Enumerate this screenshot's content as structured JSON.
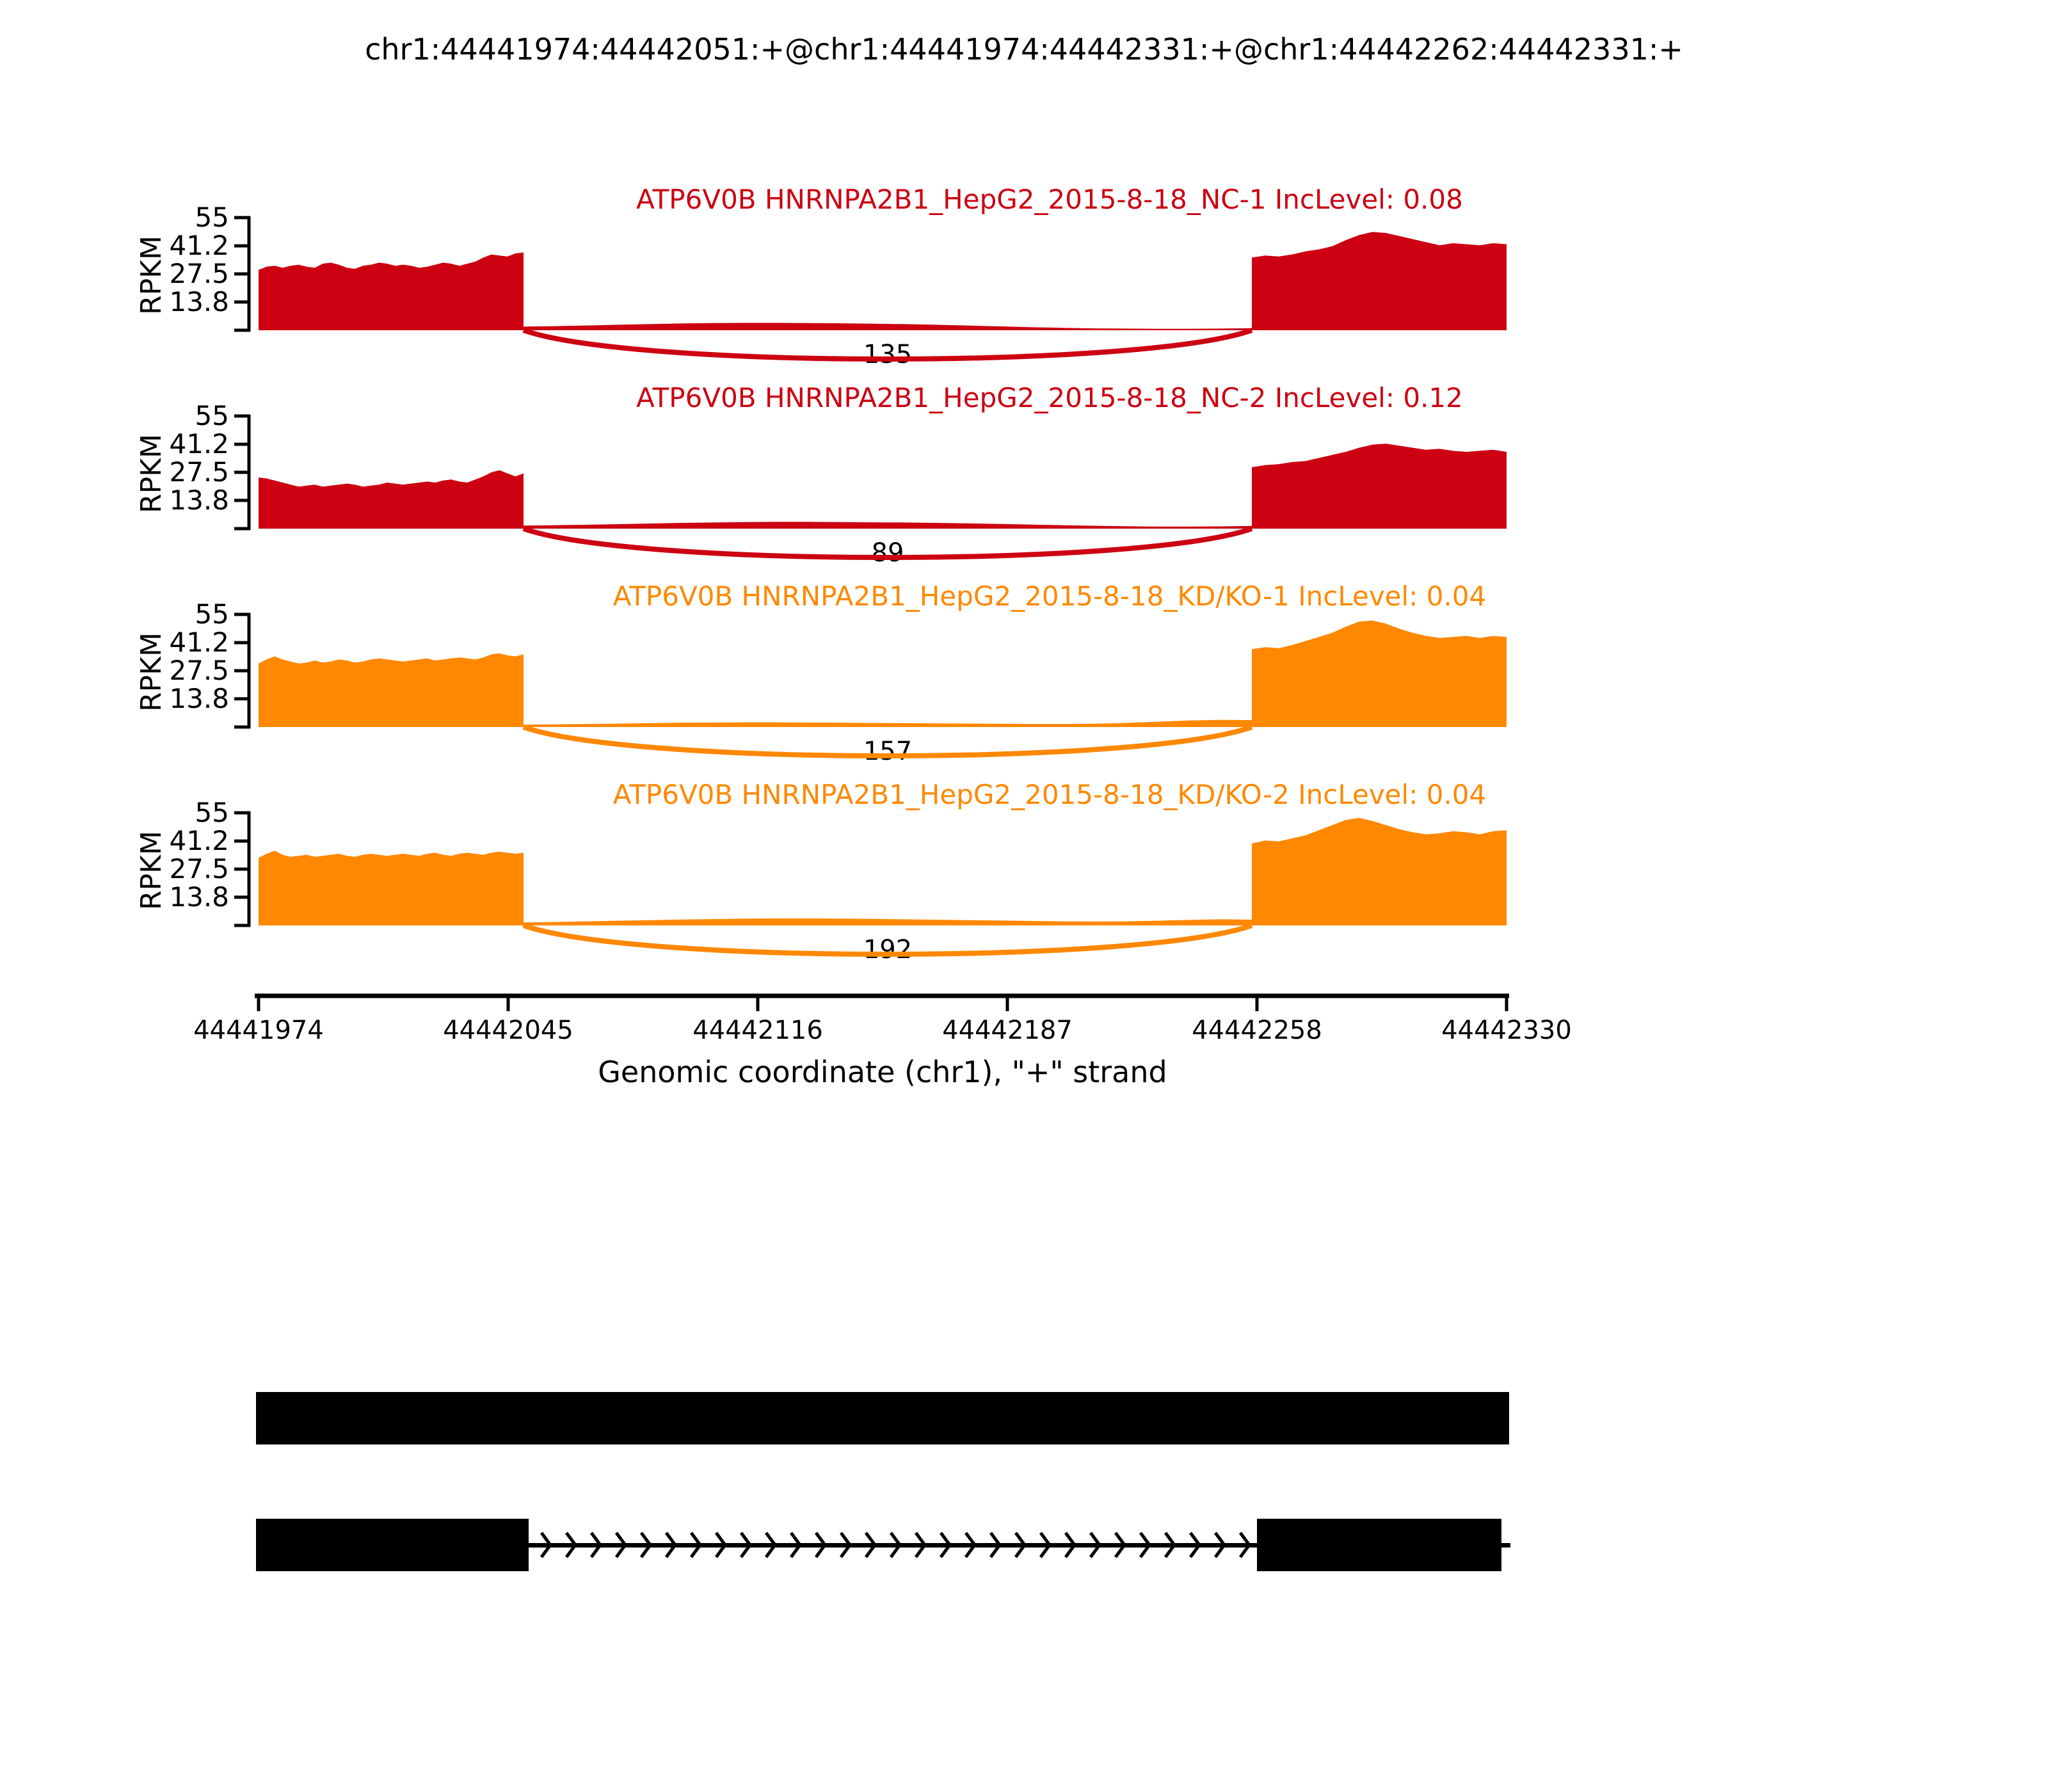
{
  "figure_title": "chr1:44441974:44442051:+@chr1:44441974:44442331:+@chr1:44442262:44442331:+",
  "chart_data": {
    "type": "area",
    "variant": "rna-seq-sashimi-plot",
    "title": "chr1:44441974:44442051:+@chr1:44441974:44442331:+@chr1:44442262:44442331:+",
    "xlabel": "Genomic coordinate (chr1), \"+\" strand",
    "ylabel": "RPKM",
    "ylim": [
      0,
      55
    ],
    "y_tick_values": [
      55,
      41.2,
      27.5,
      13.8,
      0
    ],
    "y_tick_labels": [
      "55",
      "41.2",
      "27.5",
      "13.8"
    ],
    "x_tick_labels": [
      "44441974",
      "44442045",
      "44442116",
      "44442187",
      "44442258",
      "44442330"
    ],
    "region": {
      "chromosome": "chr1",
      "start": 44441974,
      "end": 44442330,
      "strand": "+"
    },
    "exon_boundaries": {
      "upstream_exon": [
        44441974,
        44442051
      ],
      "downstream_exon": [
        44442262,
        44442331
      ]
    },
    "legend_position": "none",
    "grid": false,
    "tracks": [
      {
        "sample": "ATP6V0B HNRNPA2B1_HepG2_2015-8-18_NC-1",
        "inc_level": 0.08,
        "title_full": "ATP6V0B HNRNPA2B1_HepG2_2015-8-18_NC-1 IncLevel: 0.08",
        "junction_reads": 135,
        "color": "#CC0011",
        "coverage_rpkm": {
          "left_exon": [
            29.5,
            31,
            31.5,
            30.5,
            31.5,
            32,
            31,
            30.5,
            32.5,
            33,
            32,
            30.5,
            30,
            31.5,
            32,
            33,
            32.5,
            31.5,
            32,
            31.5,
            30.5,
            31,
            32,
            33,
            32.5,
            31.5,
            32.5,
            33.5,
            35.5,
            37,
            36.5,
            36,
            37.5,
            38
          ],
          "intron": [
            1.8,
            2.0,
            2.3,
            2.7,
            3.0,
            3.3,
            3.5,
            3.6,
            3.6,
            3.5,
            3.4,
            3.2,
            3.0,
            2.7,
            2.3,
            1.9,
            1.5,
            1.2,
            0.9,
            0.8,
            0.7,
            0.7,
            0.8,
            1.0
          ],
          "right_exon": [
            35.5,
            36.5,
            36,
            37,
            38.5,
            39.5,
            41,
            44,
            46.5,
            48,
            47.5,
            46,
            44.5,
            43,
            41.5,
            42.5,
            42,
            41.5,
            42.5,
            42
          ]
        }
      },
      {
        "sample": "ATP6V0B HNRNPA2B1_HepG2_2015-8-18_NC-2",
        "inc_level": 0.12,
        "title_full": "ATP6V0B HNRNPA2B1_HepG2_2015-8-18_NC-2 IncLevel: 0.12",
        "junction_reads": 89,
        "color": "#CC0011",
        "coverage_rpkm": {
          "left_exon": [
            25,
            24.5,
            23.5,
            22.5,
            21.5,
            20.5,
            21,
            21.5,
            20.5,
            21,
            21.5,
            22,
            21.5,
            20.5,
            21,
            21.5,
            22.5,
            22,
            21.5,
            22,
            22.5,
            23,
            22.5,
            23.5,
            24,
            23,
            22.5,
            24,
            25.5,
            27.5,
            28.5,
            27,
            25.5,
            27
          ],
          "intron": [
            1.5,
            1.7,
            1.9,
            2.2,
            2.5,
            2.8,
            3.0,
            3.2,
            3.3,
            3.3,
            3.2,
            3.1,
            3.0,
            2.8,
            2.6,
            2.3,
            2.0,
            1.7,
            1.4,
            1.2,
            1.0,
            1.0,
            1.1,
            1.3
          ],
          "right_exon": [
            30,
            31,
            31.5,
            32.5,
            33,
            34.5,
            36,
            37.5,
            39.5,
            41,
            41.5,
            40.5,
            39.5,
            38.5,
            39,
            38,
            37.5,
            38,
            38.5,
            37.5
          ]
        }
      },
      {
        "sample": "ATP6V0B HNRNPA2B1_HepG2_2015-8-18_KD/KO-1",
        "inc_level": 0.04,
        "title_full": "ATP6V0B HNRNPA2B1_HepG2_2015-8-18_KD/KO-1 IncLevel: 0.04",
        "junction_reads": 157,
        "color": "#FF8800",
        "coverage_rpkm": {
          "left_exon": [
            31,
            33,
            34.5,
            33,
            32,
            31,
            31.5,
            32.5,
            31.5,
            32,
            33,
            32.5,
            31.5,
            32,
            33,
            33.5,
            33,
            32.5,
            32,
            32.5,
            33,
            33.5,
            32.5,
            33,
            33.5,
            34,
            33.5,
            33,
            34,
            35.5,
            36,
            35,
            34.5,
            35.5
          ],
          "intron": [
            1.2,
            1.3,
            1.5,
            1.7,
            1.9,
            2.1,
            2.2,
            2.3,
            2.3,
            2.2,
            2.1,
            2.0,
            1.9,
            1.8,
            1.7,
            1.6,
            1.5,
            1.5,
            1.6,
            2.0,
            2.6,
            3.2,
            3.5,
            3.4
          ],
          "right_exon": [
            38,
            39,
            38.5,
            40,
            42,
            44,
            46,
            49,
            51.5,
            52,
            50.5,
            48,
            46,
            44.5,
            43.5,
            44,
            44.5,
            43.5,
            44.5,
            44
          ]
        }
      },
      {
        "sample": "ATP6V0B HNRNPA2B1_HepG2_2015-8-18_KD/KO-2",
        "inc_level": 0.04,
        "title_full": "ATP6V0B HNRNPA2B1_HepG2_2015-8-18_KD/KO-2 IncLevel: 0.04",
        "junction_reads": 192,
        "color": "#FF8800",
        "coverage_rpkm": {
          "left_exon": [
            33,
            35,
            36.5,
            34.5,
            33.5,
            34,
            34.5,
            33.5,
            34,
            34.5,
            35,
            34,
            33.5,
            34.5,
            35,
            34.5,
            34,
            34.5,
            35,
            34.5,
            34,
            35,
            35.5,
            34.5,
            34,
            35,
            35.5,
            35,
            34.5,
            35.5,
            36,
            35.5,
            35,
            35.5
          ],
          "intron": [
            1.5,
            1.7,
            2.0,
            2.3,
            2.6,
            2.9,
            3.1,
            3.3,
            3.4,
            3.4,
            3.3,
            3.2,
            3.0,
            2.8,
            2.6,
            2.4,
            2.2,
            2.0,
            1.9,
            2.0,
            2.3,
            2.7,
            3.0,
            2.8
          ],
          "right_exon": [
            40,
            41.5,
            41,
            42.5,
            44,
            46.5,
            49,
            51.5,
            52.5,
            51,
            49,
            47,
            45.5,
            44.5,
            45,
            46,
            45.5,
            44.5,
            46,
            46.5
          ]
        }
      }
    ],
    "gene_model": {
      "color": "#000000",
      "isoforms": [
        {
          "name": "inclusion-isoform",
          "style": "solid-bar"
        },
        {
          "name": "skipping-isoform",
          "style": "exon-intron-exon",
          "intron_arrow_direction": "right"
        }
      ]
    }
  }
}
